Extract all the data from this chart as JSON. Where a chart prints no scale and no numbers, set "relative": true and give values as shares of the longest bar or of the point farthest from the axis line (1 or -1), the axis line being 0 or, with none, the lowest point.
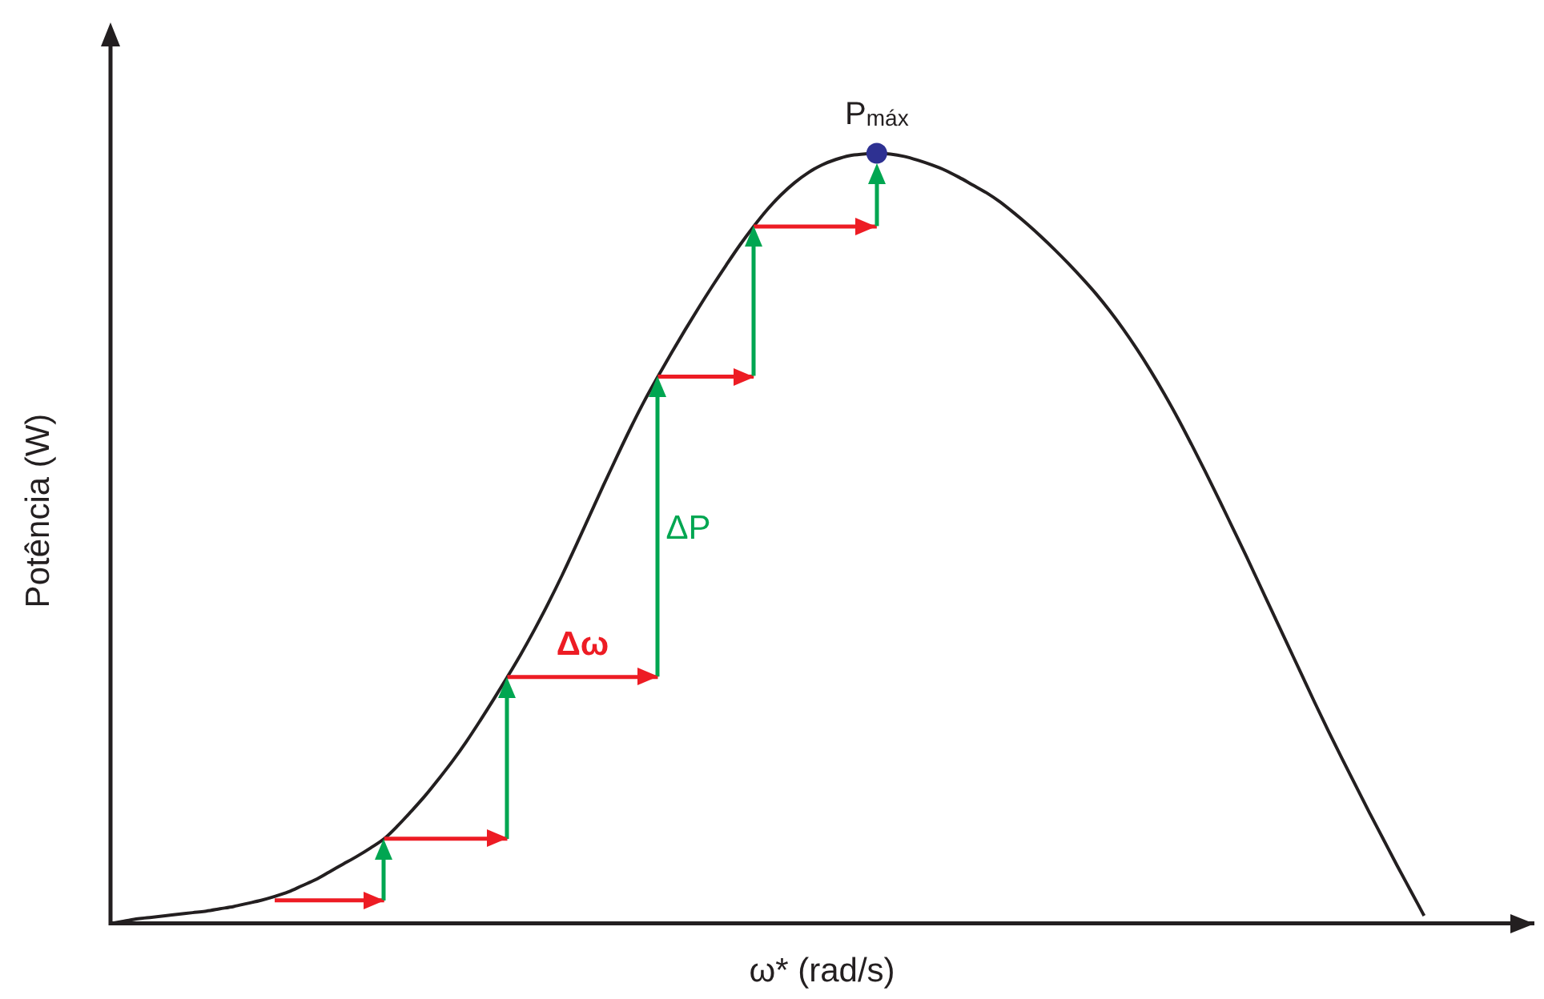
{
  "chart_data": {
    "type": "line",
    "xlabel": "ω* (rad/s)",
    "ylabel": "Potência (W)",
    "relative": true,
    "annotations": [
      "ΔP"
    ],
    "categories": [
      null,
      null,
      null,
      null,
      null,
      null,
      null,
      null,
      null,
      null,
      null,
      null,
      null,
      null,
      null,
      null,
      null,
      null,
      null,
      null,
      null,
      null,
      null,
      null,
      null,
      null,
      null,
      null,
      null,
      null,
      null,
      null,
      null,
      null,
      null,
      null,
      null,
      null,
      null,
      null,
      null,
      null,
      null,
      null,
      null,
      null,
      null,
      null,
      null,
      null,
      null,
      null,
      null,
      null,
      null,
      null,
      null,
      null,
      null,
      null,
      null,
      null,
      null,
      null,
      null,
      null,
      null,
      null,
      null,
      null,
      null,
      null,
      null,
      null,
      null,
      null,
      null,
      null,
      null,
      null,
      null,
      null,
      null,
      null,
      null,
      null,
      null,
      null,
      null,
      null,
      null,
      null,
      null,
      null,
      null,
      null,
      null,
      null,
      null,
      null,
      null,
      null,
      null,
      null,
      null
    ],
    "series": [
      {
        "color": "#231f20",
        "values": [
          0,
          0.003,
          0.006,
          0.008,
          0.01,
          0.012,
          0.014,
          0.016,
          0.019,
          0.022,
          0.026,
          0.03,
          0.035,
          0.041,
          0.049,
          0.057,
          0.067,
          0.077,
          0.087,
          0.098,
          0.11,
          0.127,
          0.146,
          0.166,
          0.188,
          0.211,
          0.236,
          0.263,
          0.291,
          0.32,
          0.35,
          0.382,
          0.416,
          0.452,
          0.49,
          0.529,
          0.568,
          0.606,
          0.643,
          0.678,
          0.71,
          0.741,
          0.771,
          0.8,
          0.828,
          0.855,
          0.881,
          0.905,
          0.927,
          0.946,
          0.962,
          0.975,
          0.985,
          0.992,
          0.997,
          0.999,
          1,
          0.999,
          0.996,
          0.991,
          0.985,
          0.978,
          0.969,
          0.959,
          0.949,
          0.937,
          0.923,
          0.908,
          0.892,
          0.875,
          0.857,
          0.838,
          0.818,
          0.796,
          0.772,
          0.746,
          0.718,
          0.688,
          0.656,
          0.622,
          0.587,
          0.551,
          0.514,
          0.477,
          0.439,
          0.401,
          0.363,
          0.325,
          0.287,
          0.25,
          0.214,
          0.179,
          0.144,
          0.11,
          0.076,
          0.043,
          0.01,
          null,
          null,
          null,
          null,
          null,
          null,
          null,
          null
        ]
      },
      {
        "type": "line",
        "name": "Δω",
        "color": "#ed1c24",
        "values": [
          null,
          null,
          null,
          null,
          null,
          null,
          null,
          null,
          null,
          null,
          null,
          null,
          0.03,
          0.03,
          0.03,
          0.03,
          0.03,
          0.03,
          0.03,
          0.03,
          0.03,
          null,
          null,
          null,
          null,
          null,
          null,
          null,
          null,
          0.32,
          0.32,
          0.32,
          0.32,
          0.32,
          0.32,
          0.32,
          0.32,
          0.32,
          0.32,
          0.32,
          0.32,
          null,
          null,
          null,
          null,
          null,
          null,
          0.905,
          0.905,
          0.905,
          0.905,
          0.905,
          0.905,
          0.905,
          0.905,
          0.905,
          0.905,
          null,
          null,
          null,
          null,
          null,
          null,
          null,
          null,
          null,
          null,
          null,
          null,
          null,
          null,
          null,
          null,
          null,
          null,
          null,
          null,
          null,
          null,
          null,
          null,
          null,
          null,
          null,
          null,
          null,
          null,
          null,
          null,
          null,
          null,
          null,
          null,
          null,
          null,
          null,
          null,
          null,
          null,
          null,
          null,
          null,
          null,
          null,
          null
        ]
      },
      {
        "type": "line",
        "color": "#ed1c24",
        "values": [
          null,
          null,
          null,
          null,
          null,
          null,
          null,
          null,
          null,
          null,
          null,
          null,
          null,
          null,
          null,
          null,
          null,
          null,
          null,
          null,
          0.11,
          0.11,
          0.11,
          0.11,
          0.11,
          0.11,
          0.11,
          0.11,
          0.11,
          0.11,
          null,
          null,
          null,
          null,
          null,
          null,
          null,
          null,
          null,
          null,
          0.71,
          0.71,
          0.71,
          0.71,
          0.71,
          0.71,
          0.71,
          0.71,
          null,
          null,
          null,
          null,
          null,
          null,
          null,
          null,
          null,
          null,
          null,
          null,
          null,
          null,
          null,
          null,
          null,
          null,
          null,
          null,
          null,
          null,
          null,
          null,
          null,
          null,
          null,
          null,
          null,
          null,
          null,
          null,
          null,
          null,
          null,
          null,
          null,
          null,
          null,
          null,
          null,
          null,
          null,
          null,
          null,
          null,
          null,
          null,
          null,
          null,
          null,
          null,
          null,
          null,
          null,
          null,
          null
        ]
      },
      {
        "type": "line",
        "name": "P$_{máx}$",
        "color": "#2e3192",
        "marker": "circle",
        "values": [
          null,
          null,
          null,
          null,
          null,
          null,
          null,
          null,
          null,
          null,
          null,
          null,
          null,
          null,
          null,
          null,
          null,
          null,
          null,
          null,
          null,
          null,
          null,
          null,
          null,
          null,
          null,
          null,
          null,
          null,
          null,
          null,
          null,
          null,
          null,
          null,
          null,
          null,
          null,
          null,
          null,
          null,
          null,
          null,
          null,
          null,
          null,
          null,
          null,
          null,
          null,
          null,
          null,
          null,
          null,
          null,
          1,
          null,
          null,
          null,
          null,
          null,
          null,
          null,
          null,
          null,
          null,
          null,
          null,
          null,
          null,
          null,
          null,
          null,
          null,
          null,
          null,
          null,
          null,
          null,
          null,
          null,
          null,
          null,
          null,
          null,
          null,
          null,
          null,
          null,
          null,
          null,
          null,
          null,
          null,
          null,
          null,
          null,
          null,
          null,
          null,
          null,
          null,
          null,
          null
        ]
      }
    ]
  }
}
